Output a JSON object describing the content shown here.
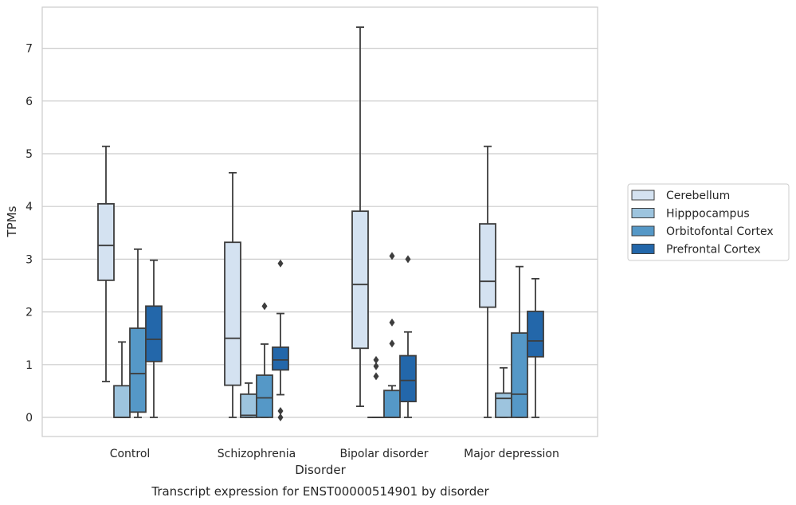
{
  "chart_data": {
    "type": "box",
    "title": "",
    "caption": "Transcript expression for ENST00000514901 by disorder",
    "xlabel": "Disorder",
    "ylabel": "TPMs",
    "ylim": [
      -0.36,
      7.75
    ],
    "yticks": [
      0,
      1,
      2,
      3,
      4,
      5,
      6,
      7
    ],
    "grid": "horizontal",
    "legend_position": "right",
    "categories": [
      "Control",
      "Schizophrenia",
      "Bipolar disorder",
      "Major depression"
    ],
    "series": [
      {
        "name": "Cerebellum",
        "color": "#d4e2f1",
        "boxes": [
          {
            "whisker_low": 0.68,
            "q1": 2.6,
            "median": 3.26,
            "q3": 4.05,
            "whisker_high": 5.14,
            "outliers": []
          },
          {
            "whisker_low": 0.0,
            "q1": 0.61,
            "median": 1.5,
            "q3": 3.32,
            "whisker_high": 4.64,
            "outliers": []
          },
          {
            "whisker_low": 0.21,
            "q1": 1.31,
            "median": 2.52,
            "q3": 3.91,
            "whisker_high": 7.4,
            "outliers": []
          },
          {
            "whisker_low": 0.0,
            "q1": 2.09,
            "median": 2.58,
            "q3": 3.67,
            "whisker_high": 5.14,
            "outliers": []
          }
        ]
      },
      {
        "name": "Hipppocampus",
        "color": "#9dc4de",
        "boxes": [
          {
            "whisker_low": 0.0,
            "q1": 0.0,
            "median": 0.0,
            "q3": 0.6,
            "whisker_high": 1.43,
            "outliers": []
          },
          {
            "whisker_low": 0.0,
            "q1": 0.0,
            "median": 0.04,
            "q3": 0.44,
            "whisker_high": 0.65,
            "outliers": []
          },
          {
            "whisker_low": 0.0,
            "q1": 0.0,
            "median": 0.0,
            "q3": 0.0,
            "whisker_high": 0.0,
            "outliers": [
              0.78,
              0.97,
              1.09
            ]
          },
          {
            "whisker_low": 0.0,
            "q1": 0.0,
            "median": 0.36,
            "q3": 0.46,
            "whisker_high": 0.94,
            "outliers": []
          }
        ]
      },
      {
        "name": "Orbitofontal Cortex",
        "color": "#5598c7",
        "boxes": [
          {
            "whisker_low": 0.0,
            "q1": 0.1,
            "median": 0.83,
            "q3": 1.69,
            "whisker_high": 3.19,
            "outliers": []
          },
          {
            "whisker_low": 0.0,
            "q1": 0.0,
            "median": 0.37,
            "q3": 0.8,
            "whisker_high": 1.39,
            "outliers": [
              2.11
            ]
          },
          {
            "whisker_low": 0.0,
            "q1": 0.0,
            "median": 0.0,
            "q3": 0.51,
            "whisker_high": 0.6,
            "outliers": [
              1.4,
              1.8,
              3.06
            ]
          },
          {
            "whisker_low": 0.0,
            "q1": 0.0,
            "median": 0.44,
            "q3": 1.6,
            "whisker_high": 2.86,
            "outliers": []
          }
        ]
      },
      {
        "name": "Prefrontal Cortex",
        "color": "#2367aa",
        "boxes": [
          {
            "whisker_low": 0.0,
            "q1": 1.06,
            "median": 1.48,
            "q3": 2.11,
            "whisker_high": 2.98,
            "outliers": []
          },
          {
            "whisker_low": 0.43,
            "q1": 0.9,
            "median": 1.09,
            "q3": 1.33,
            "whisker_high": 1.97,
            "outliers": [
              0.0,
              0.12,
              2.92
            ]
          },
          {
            "whisker_low": 0.0,
            "q1": 0.3,
            "median": 0.7,
            "q3": 1.17,
            "whisker_high": 1.62,
            "outliers": [
              3.0
            ]
          },
          {
            "whisker_low": 0.0,
            "q1": 1.15,
            "median": 1.45,
            "q3": 2.01,
            "whisker_high": 2.63,
            "outliers": []
          }
        ]
      }
    ]
  }
}
